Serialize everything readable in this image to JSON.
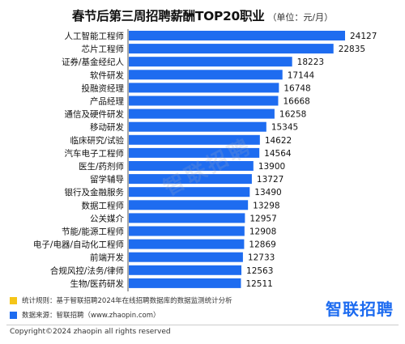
{
  "header": {
    "title": "春节后第三周招聘薪酬TOP20职业",
    "unit": "（单位：元/月）"
  },
  "chart_data": {
    "type": "bar",
    "orientation": "horizontal",
    "title": "春节后第三周招聘薪酬TOP20职业",
    "unit": "（单位：元/月）",
    "categories": [
      "人工智能工程师",
      "芯片工程师",
      "证券/基金经纪人",
      "软件研发",
      "投融资经理",
      "产品经理",
      "通信及硬件研发",
      "移动研发",
      "临床研究/试验",
      "汽车电子工程师",
      "医生/药剂师",
      "留学辅导",
      "银行及金融服务",
      "数据工程师",
      "公关媒介",
      "节能/能源工程师",
      "电子/电器/自动化工程师",
      "前端开发",
      "合规风控/法务/律师",
      "生物/医药研发"
    ],
    "values": [
      24127,
      22835,
      18223,
      17144,
      16748,
      16668,
      16258,
      15345,
      14622,
      14564,
      13900,
      13727,
      13490,
      13298,
      12957,
      12908,
      12869,
      12733,
      12563,
      12511
    ],
    "bar_color": "#1e6cf0",
    "grid": false,
    "legend": "bottom-left"
  },
  "legend": {
    "items": [
      {
        "color": "#f5c518",
        "text": "统计规则：基于智联招聘2024年在线招聘数据库的数据监测统计分析"
      },
      {
        "color": "#1e6cf0",
        "text": "数据来源：智联招聘（www.zhaopin.com）"
      }
    ]
  },
  "logo": {
    "text": "智联招聘"
  },
  "watermark": {
    "text": "智联招聘"
  },
  "footer": {
    "copyright": "Copyright©2024 zhaopin all rights reserved"
  }
}
